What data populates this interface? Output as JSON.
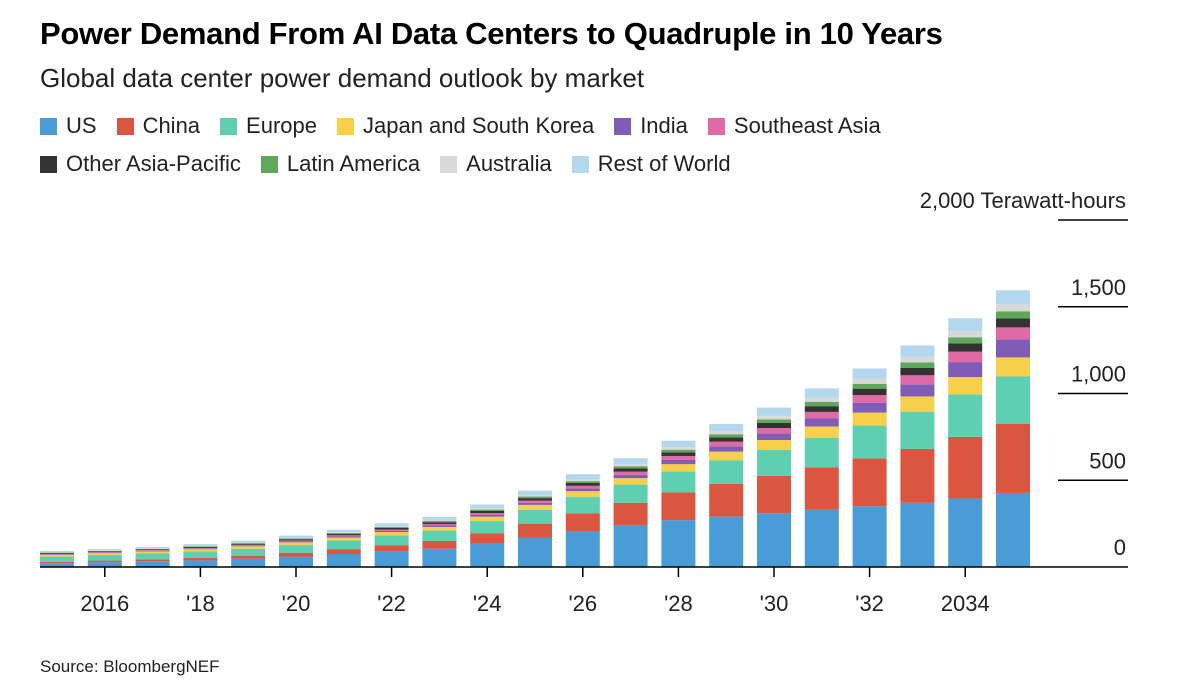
{
  "title": "Power Demand From AI Data Centers to Quadruple in 10 Years",
  "subtitle": "Global data center power demand outlook by market",
  "source": "Source: BloombergNEF",
  "chart_data": {
    "type": "bar",
    "stacked": true,
    "title": "Power Demand From AI Data Centers to Quadruple in 10 Years",
    "subtitle": "Global data center power demand outlook by market",
    "ylabel": "Terawatt-hours",
    "ylim": [
      0,
      2000
    ],
    "yticks": [
      0,
      500,
      1000,
      1500,
      2000
    ],
    "ytick_labels": [
      "0",
      "500",
      "1,000",
      "1,500",
      "2,000 Terawatt-hours"
    ],
    "x": [
      2015,
      2016,
      2017,
      2018,
      2019,
      2020,
      2021,
      2022,
      2023,
      2024,
      2025,
      2026,
      2027,
      2028,
      2029,
      2030,
      2031,
      2032,
      2033,
      2034,
      2035
    ],
    "xtick_years": [
      2016,
      2018,
      2020,
      2022,
      2024,
      2026,
      2028,
      2030,
      2032,
      2034
    ],
    "xtick_labels": [
      "2016",
      "'18",
      "'20",
      "'22",
      "'24",
      "'26",
      "'28",
      "'30",
      "'32",
      "2034"
    ],
    "legend_placement": "top",
    "grid": false,
    "series": [
      {
        "name": "US",
        "color": "#4a9cd6",
        "values": [
          22,
          28,
          33,
          38,
          48,
          60,
          75,
          90,
          105,
          135,
          170,
          205,
          240,
          270,
          290,
          310,
          330,
          350,
          370,
          395,
          427
        ]
      },
      {
        "name": "China",
        "color": "#db5640",
        "values": [
          8,
          9,
          11,
          14,
          17,
          22,
          28,
          36,
          45,
          60,
          80,
          105,
          130,
          160,
          190,
          215,
          245,
          275,
          310,
          355,
          399
        ]
      },
      {
        "name": "Europe",
        "color": "#5ecfb1",
        "values": [
          30,
          32,
          34,
          37,
          40,
          45,
          50,
          56,
          60,
          70,
          80,
          95,
          105,
          120,
          135,
          150,
          170,
          190,
          215,
          245,
          272
        ]
      },
      {
        "name": "Japan and South Korea",
        "color": "#f6cf4b",
        "values": [
          10,
          11,
          12,
          13,
          14,
          15,
          17,
          19,
          21,
          25,
          28,
          32,
          37,
          43,
          50,
          57,
          65,
          75,
          88,
          100,
          110
        ]
      },
      {
        "name": "India",
        "color": "#7f5db6",
        "values": [
          2,
          2,
          3,
          3,
          4,
          5,
          6,
          7,
          8,
          10,
          12,
          15,
          19,
          24,
          30,
          37,
          46,
          57,
          70,
          86,
          104
        ]
      },
      {
        "name": "Southeast Asia",
        "color": "#df6aa6",
        "values": [
          3,
          3,
          4,
          4,
          5,
          6,
          7,
          8,
          9,
          11,
          13,
          16,
          19,
          23,
          27,
          32,
          38,
          44,
          52,
          60,
          69
        ]
      },
      {
        "name": "Other Asia-Pacific",
        "color": "#333333",
        "values": [
          5,
          5,
          5,
          6,
          6,
          7,
          8,
          9,
          10,
          12,
          14,
          16,
          18,
          21,
          25,
          29,
          33,
          37,
          42,
          47,
          52
        ]
      },
      {
        "name": "Latin America",
        "color": "#5fa85b",
        "values": [
          3,
          3,
          3,
          4,
          4,
          5,
          5,
          6,
          7,
          8,
          9,
          11,
          13,
          15,
          18,
          21,
          24,
          28,
          32,
          36,
          41
        ]
      },
      {
        "name": "Australia",
        "color": "#d9d9d9",
        "values": [
          3,
          3,
          3,
          4,
          4,
          4,
          5,
          5,
          6,
          7,
          8,
          10,
          12,
          14,
          17,
          20,
          24,
          28,
          32,
          36,
          40
        ]
      },
      {
        "name": "Rest of World",
        "color": "#b3d8ed",
        "values": [
          6,
          7,
          8,
          9,
          10,
          12,
          14,
          16,
          18,
          22,
          26,
          30,
          34,
          38,
          42,
          48,
          54,
          60,
          66,
          74,
          81
        ]
      }
    ]
  }
}
